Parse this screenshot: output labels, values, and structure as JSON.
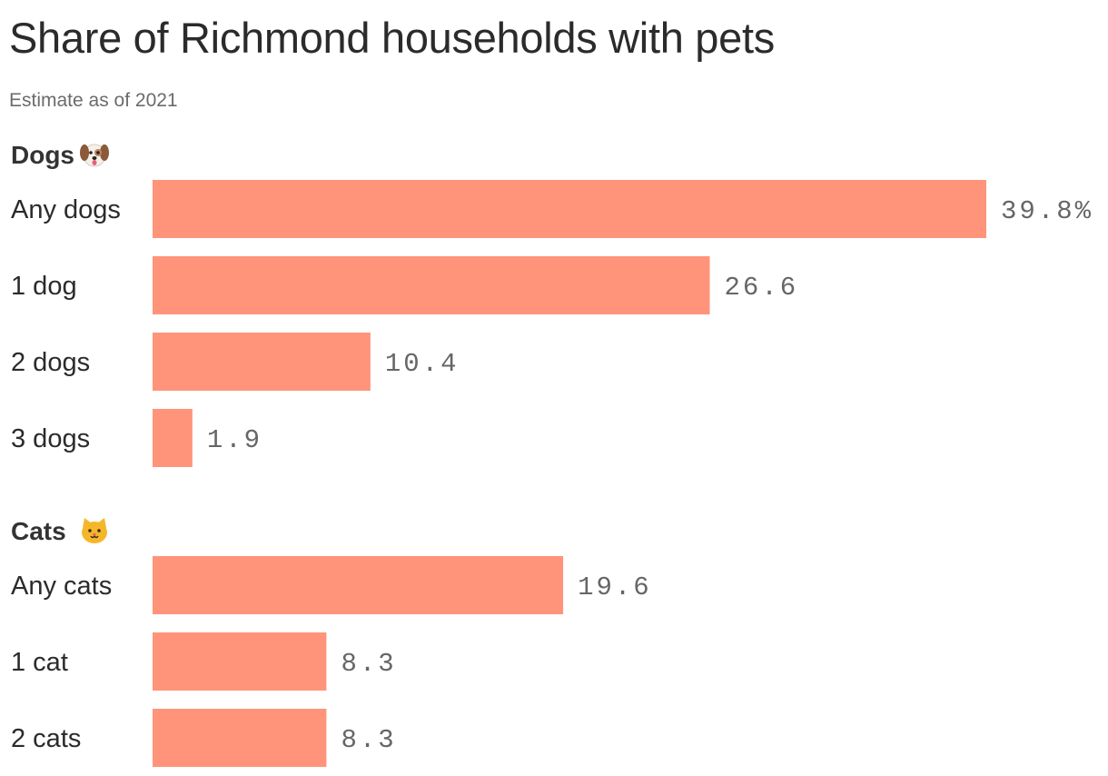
{
  "title": "Share of Richmond households with pets",
  "subtitle": "Estimate as of 2021",
  "colors": {
    "bar": "#ff947a",
    "label": "#2b2b2b",
    "value": "#666666"
  },
  "chart_data": {
    "type": "bar",
    "orientation": "horizontal",
    "unit": "%",
    "xlim": [
      0,
      39.8
    ],
    "groups": [
      {
        "name": "Dogs",
        "icon": "dog-face-icon",
        "categories": [
          "Any dogs",
          "1 dog",
          "2 dogs",
          "3 dogs"
        ],
        "values": [
          39.8,
          26.6,
          10.4,
          1.9
        ],
        "value_labels": [
          "39.8%",
          "26.6",
          "10.4",
          "1.9"
        ]
      },
      {
        "name": "Cats",
        "icon": "cat-face-icon",
        "categories": [
          "Any cats",
          "1 cat",
          "2 cats"
        ],
        "values": [
          19.6,
          8.3,
          8.3
        ],
        "value_labels": [
          "19.6",
          "8.3",
          "8.3"
        ]
      }
    ]
  }
}
